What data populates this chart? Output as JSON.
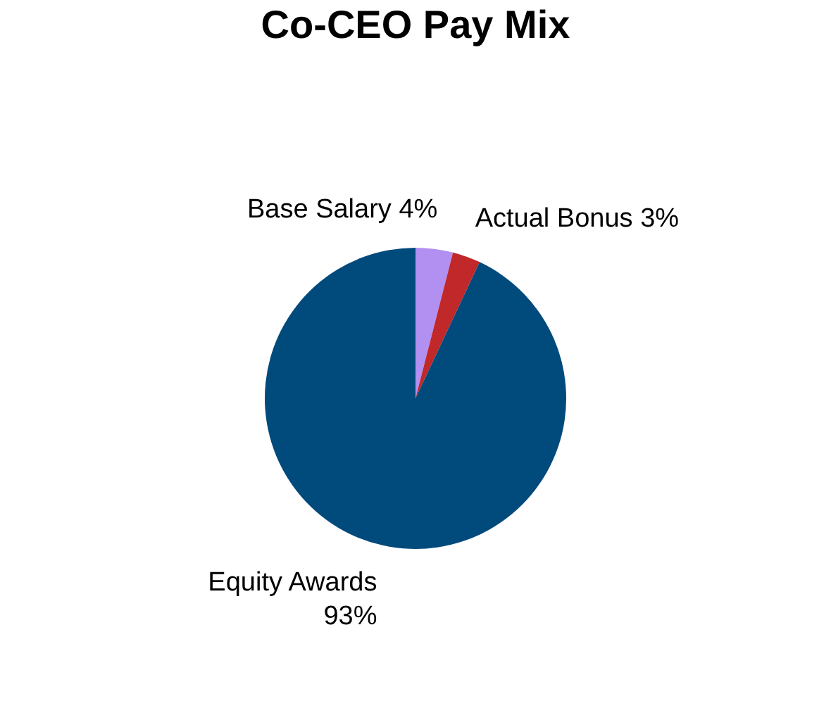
{
  "chart_data": {
    "type": "pie",
    "title": "Co-CEO Pay Mix",
    "categories": [
      "Base Salary",
      "Actual Bonus",
      "Equity Awards"
    ],
    "values": [
      4,
      3,
      93
    ],
    "colors": [
      "#b190f2",
      "#c0282a",
      "#004a7c"
    ],
    "value_labels": [
      "4%",
      "3%",
      "93%"
    ],
    "legend": false
  }
}
